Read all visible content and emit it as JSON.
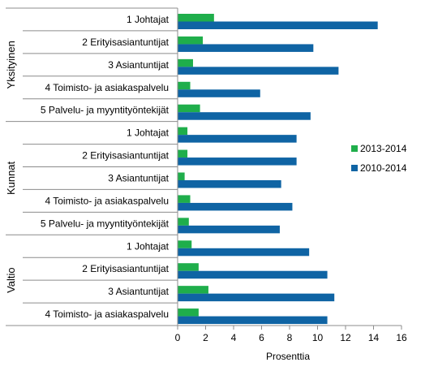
{
  "chart_data": {
    "type": "bar",
    "orientation": "horizontal",
    "xlabel": "Prosenttia",
    "xlim": [
      0,
      16
    ],
    "xticks": [
      0,
      2,
      4,
      6,
      8,
      10,
      12,
      14,
      16
    ],
    "grid": false,
    "legend_position": "right",
    "groups": [
      {
        "name": "Yksityinen",
        "categories": [
          "1 Johtajat",
          "2 Erityisasiantuntijat",
          "3 Asiantuntijat",
          "4 Toimisto- ja asiakaspalvelu",
          "5 Palvelu- ja myyntityöntekijät"
        ]
      },
      {
        "name": "Kunnat",
        "categories": [
          "1 Johtajat",
          "2 Erityisasiantuntijat",
          "3 Asiantuntijat",
          "4 Toimisto- ja asiakaspalvelu",
          "5 Palvelu- ja myyntityöntekijät"
        ]
      },
      {
        "name": "Valtio",
        "categories": [
          "1 Johtajat",
          "2 Erityisasiantuntijat",
          "3 Asiantuntijat",
          "4 Toimisto- ja asiakaspalvelu"
        ]
      }
    ],
    "series": [
      {
        "name": "2013-2014",
        "color": "#1fae4b",
        "values": [
          2.6,
          1.8,
          1.1,
          0.9,
          1.6,
          0.7,
          0.7,
          0.5,
          0.9,
          0.8,
          1.0,
          1.5,
          2.2,
          1.5
        ]
      },
      {
        "name": "2010-2014",
        "color": "#0f64a4",
        "values": [
          14.3,
          9.7,
          11.5,
          5.9,
          9.5,
          8.5,
          8.5,
          7.4,
          8.2,
          7.3,
          9.4,
          10.7,
          11.2,
          10.7
        ]
      }
    ]
  }
}
